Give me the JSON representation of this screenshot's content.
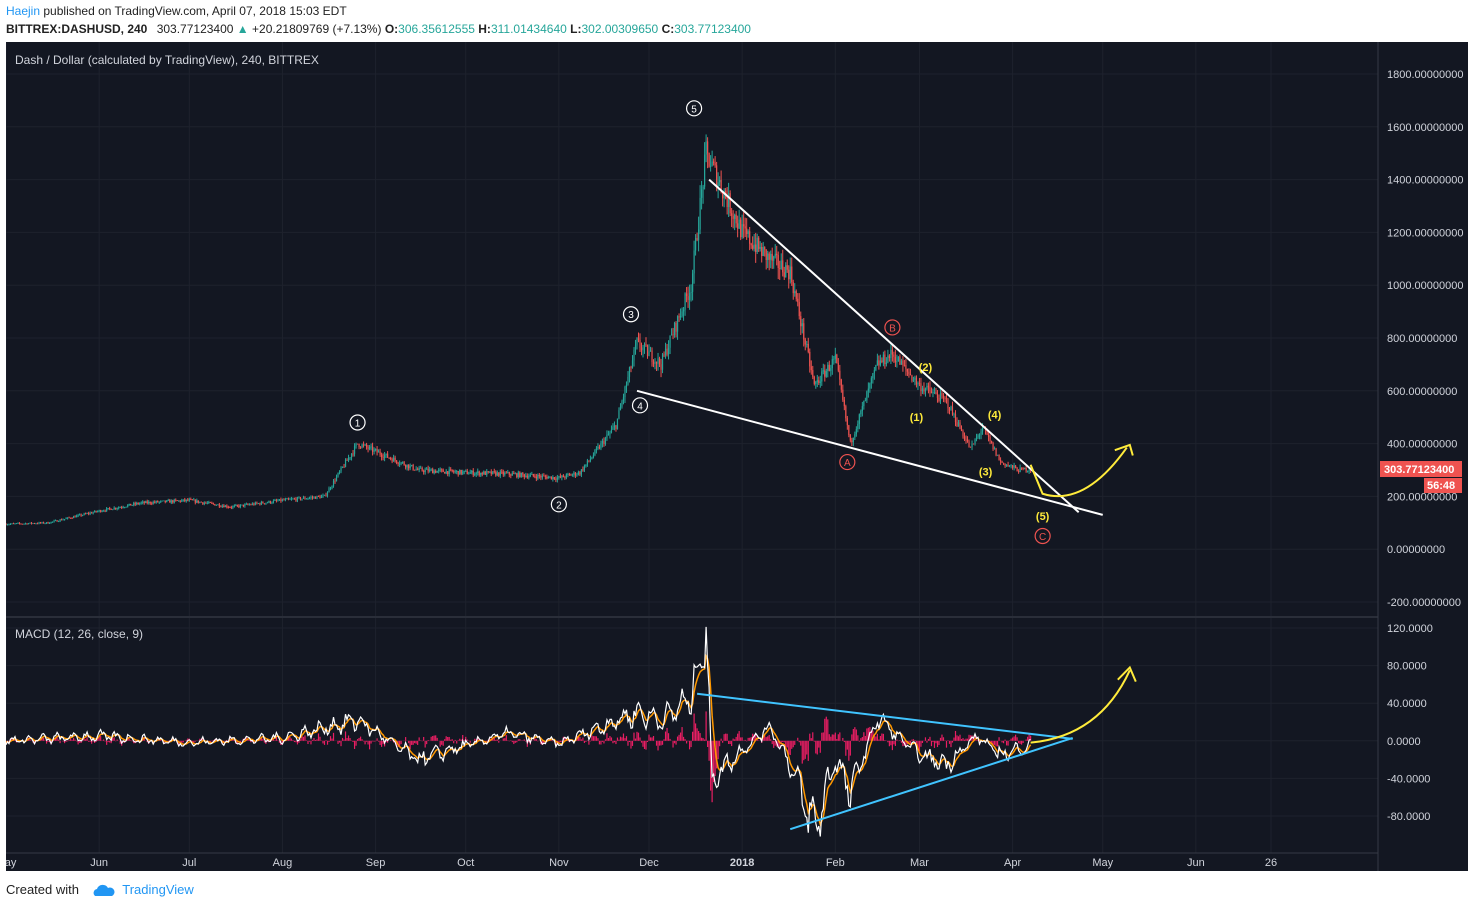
{
  "header": {
    "author": "Haejin",
    "published_text": "published on TradingView.com, April 07, 2018 15:03 EDT",
    "symbol": "BITTREX:DASHUSD, 240",
    "last": "303.77123400",
    "change": "+20.21809769 (+7.13%)",
    "o_label": "O:",
    "o_value": "306.35612555",
    "h_label": "H:",
    "h_value": "311.01434640",
    "l_label": "L:",
    "l_value": "302.00309650",
    "c_label": "C:",
    "c_value": "303.77123400"
  },
  "footer": {
    "created_with": "Created with",
    "brand": "TradingView"
  },
  "colors": {
    "background": "#131722",
    "up": "#26a69a",
    "down": "#ef5350",
    "macd": "#ffffff",
    "signal": "#ff9800",
    "histogram": "#e91e63",
    "trend_cyan": "#40c4ff",
    "projection": "#ffeb3b",
    "price_tag": "#ef5350"
  },
  "chart_data": [
    {
      "type": "line",
      "title": "Dash / Dollar (calculated by TradingView), 240, BITTREX",
      "ylim": [
        -200,
        1800
      ],
      "y_ticks": [
        "1800.00000000",
        "1600.00000000",
        "1400.00000000",
        "1200.00000000",
        "1000.00000000",
        "800.00000000",
        "600.00000000",
        "400.00000000",
        "200.00000000",
        "0.00000000",
        "-200.00000000"
      ],
      "x_ticks": [
        "May",
        "Jun",
        "Jul",
        "Aug",
        "Sep",
        "Oct",
        "Nov",
        "Dec",
        "2018",
        "Feb",
        "Mar",
        "Apr",
        "May",
        "Jun",
        "26"
      ],
      "x": [
        "2017-05-01",
        "2017-05-15",
        "2017-06-01",
        "2017-06-15",
        "2017-07-01",
        "2017-07-15",
        "2017-08-01",
        "2017-08-15",
        "2017-08-26",
        "2017-09-01",
        "2017-09-15",
        "2017-10-01",
        "2017-10-15",
        "2017-11-01",
        "2017-11-08",
        "2017-11-20",
        "2017-11-27",
        "2017-12-05",
        "2017-12-15",
        "2017-12-20",
        "2018-01-01",
        "2018-01-10",
        "2018-01-17",
        "2018-01-25",
        "2018-02-01",
        "2018-02-06",
        "2018-02-15",
        "2018-02-20",
        "2018-03-01",
        "2018-03-10",
        "2018-03-18",
        "2018-03-22",
        "2018-03-28",
        "2018-04-03",
        "2018-04-07"
      ],
      "close": [
        95,
        100,
        145,
        175,
        185,
        160,
        185,
        200,
        400,
        370,
        300,
        290,
        285,
        270,
        290,
        470,
        780,
        700,
        1000,
        1500,
        1200,
        1100,
        1050,
        620,
        720,
        400,
        700,
        740,
        620,
        560,
        380,
        460,
        330,
        300,
        304
      ],
      "last_price": "303.77123400",
      "countdown": "56:48",
      "wave_labels": [
        "1",
        "2",
        "3",
        "4",
        "5",
        "A",
        "B",
        "C",
        "(1)",
        "(2)",
        "(3)",
        "(4)",
        "(5)"
      ]
    },
    {
      "type": "line",
      "title": "MACD (12, 26, close, 9)",
      "ylim": [
        -120,
        120
      ],
      "y_ticks": [
        "120.0000",
        "80.0000",
        "40.0000",
        "0.0000",
        "-40.0000",
        "-80.0000"
      ],
      "series": [
        {
          "name": "MACD",
          "x": [
            "2017-05-01",
            "2017-06-01",
            "2017-07-01",
            "2017-08-01",
            "2017-08-26",
            "2017-09-15",
            "2017-10-15",
            "2017-11-01",
            "2017-11-27",
            "2017-12-05",
            "2017-12-15",
            "2017-12-20",
            "2017-12-22",
            "2018-01-01",
            "2018-01-10",
            "2018-01-17",
            "2018-01-25",
            "2018-02-01",
            "2018-02-06",
            "2018-02-15",
            "2018-02-20",
            "2018-03-01",
            "2018-03-10",
            "2018-03-20",
            "2018-03-28",
            "2018-04-07"
          ],
          "values": [
            0,
            5,
            -2,
            3,
            22,
            -20,
            8,
            -3,
            30,
            22,
            45,
            120,
            -40,
            -10,
            15,
            -25,
            -95,
            -20,
            -55,
            25,
            10,
            -15,
            -25,
            5,
            -15,
            -5
          ]
        }
      ]
    }
  ]
}
